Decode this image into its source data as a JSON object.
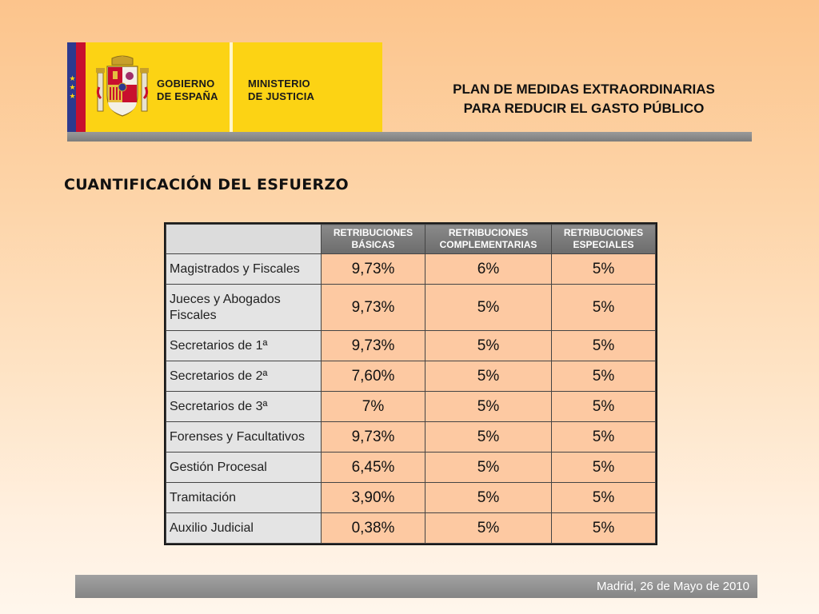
{
  "logo": {
    "line1a": "GOBIERNO",
    "line1b": "DE ESPAÑA",
    "line2a": "MINISTERIO",
    "line2b": "DE JUSTICIA"
  },
  "plan_title": {
    "line1": "PLAN DE MEDIDAS EXTRAORDINARIAS",
    "line2": "PARA REDUCIR EL GASTO PÚBLICO"
  },
  "section_title": "CUANTIFICACIÓN DEL ESFUERZO",
  "table": {
    "headers": [
      {
        "line1": "RETRIBUCIONES",
        "line2": "BÁSICAS"
      },
      {
        "line1": "RETRIBUCIONES",
        "line2": "COMPLEMENTARIAS"
      },
      {
        "line1": "RETRIBUCIONES",
        "line2": "ESPECIALES"
      }
    ],
    "rows": [
      {
        "label": "Magistrados y Fiscales",
        "values": [
          "9,73%",
          "6%",
          "5%"
        ]
      },
      {
        "label": "Jueces y Abogados Fiscales",
        "values": [
          "9,73%",
          "5%",
          "5%"
        ]
      },
      {
        "label": "Secretarios de 1ª",
        "values": [
          "9,73%",
          "5%",
          "5%"
        ]
      },
      {
        "label": "Secretarios de 2ª",
        "values": [
          "7,60%",
          "5%",
          "5%"
        ]
      },
      {
        "label": "Secretarios de 3ª",
        "values": [
          "7%",
          "5%",
          "5%"
        ]
      },
      {
        "label": "Forenses y Facultativos",
        "values": [
          "9,73%",
          "5%",
          "5%"
        ]
      },
      {
        "label": "Gestión Procesal",
        "values": [
          "6,45%",
          "5%",
          "5%"
        ]
      },
      {
        "label": "Tramitación",
        "values": [
          "3,90%",
          "5%",
          "5%"
        ]
      },
      {
        "label": "Auxilio Judicial",
        "values": [
          "0,38%",
          "5%",
          "5%"
        ]
      }
    ]
  },
  "footer": {
    "date": "Madrid, 26 de Mayo de 2010"
  },
  "colors": {
    "logo_yellow": "#fcd314",
    "header_gray": "#6c6c6c",
    "value_cell": "#fdc9a2",
    "label_cell": "#e4e4e4"
  }
}
